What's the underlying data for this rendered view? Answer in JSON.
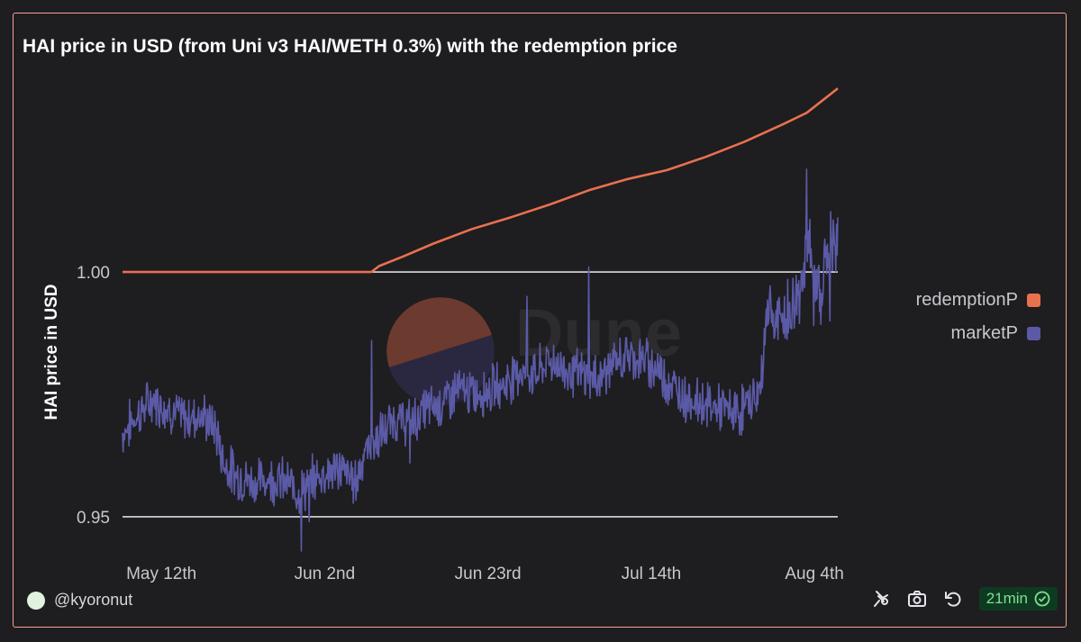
{
  "title": "HAI price in USD (from Uni v3 HAI/WETH 0.3%) with the redemption price",
  "footer": {
    "user": "@kyoronut",
    "refresh_age": "21min"
  },
  "watermark": "Dune",
  "colors": {
    "redemptionP": "#e8714e",
    "marketP": "#5b5aa6",
    "grid": "#ffffff",
    "text": "#c9c6ce"
  },
  "chart_data": {
    "type": "line",
    "ylabel": "HAI price in USD",
    "xlabel": "",
    "y_ticks": [
      1.0,
      0.95
    ],
    "y_tick_labels": [
      "1.00",
      "0.95"
    ],
    "ylim": [
      0.943,
      1.039
    ],
    "x_range": [
      "May 7th",
      "Aug 8th"
    ],
    "x_ticks": [
      "May 12th",
      "Jun 2nd",
      "Jun 23rd",
      "Jul 14th",
      "Aug 4th"
    ],
    "x_tick_days": [
      5,
      26,
      47,
      68,
      89
    ],
    "x_day_range": [
      0,
      92
    ],
    "legend": [
      "redemptionP",
      "marketP"
    ],
    "legend_position": "right",
    "series": [
      {
        "name": "redemptionP",
        "points": [
          [
            0,
            1.0
          ],
          [
            32,
            1.0
          ],
          [
            33,
            1.0012
          ],
          [
            36,
            1.0031
          ],
          [
            40,
            1.0058
          ],
          [
            45,
            1.0088
          ],
          [
            50,
            1.0112
          ],
          [
            55,
            1.0138
          ],
          [
            60,
            1.0167
          ],
          [
            65,
            1.019
          ],
          [
            70,
            1.0208
          ],
          [
            75,
            1.0235
          ],
          [
            80,
            1.0266
          ],
          [
            85,
            1.0302
          ],
          [
            88,
            1.0325
          ],
          [
            92,
            1.0375
          ]
        ]
      },
      {
        "name": "marketP",
        "points": [
          [
            0,
            0.967
          ],
          [
            2,
            0.971
          ],
          [
            4,
            0.974
          ],
          [
            6,
            0.972
          ],
          [
            8,
            0.97
          ],
          [
            10,
            0.971
          ],
          [
            12,
            0.968
          ],
          [
            13,
            0.961
          ],
          [
            15,
            0.958
          ],
          [
            17,
            0.957
          ],
          [
            19,
            0.958
          ],
          [
            21,
            0.957
          ],
          [
            23,
            0.955
          ],
          [
            24,
            0.957
          ],
          [
            26,
            0.959
          ],
          [
            28,
            0.96
          ],
          [
            30,
            0.957
          ],
          [
            31,
            0.963
          ],
          [
            33,
            0.966
          ],
          [
            35,
            0.97
          ],
          [
            37,
            0.969
          ],
          [
            39,
            0.972
          ],
          [
            41,
            0.973
          ],
          [
            43,
            0.976
          ],
          [
            45,
            0.975
          ],
          [
            47,
            0.976
          ],
          [
            49,
            0.977
          ],
          [
            51,
            0.98
          ],
          [
            53,
            0.979
          ],
          [
            55,
            0.982
          ],
          [
            57,
            0.98
          ],
          [
            59,
            0.979
          ],
          [
            61,
            0.978
          ],
          [
            63,
            0.981
          ],
          [
            65,
            0.983
          ],
          [
            67,
            0.982
          ],
          [
            69,
            0.98
          ],
          [
            71,
            0.976
          ],
          [
            73,
            0.974
          ],
          [
            75,
            0.973
          ],
          [
            77,
            0.972
          ],
          [
            79,
            0.971
          ],
          [
            81,
            0.974
          ],
          [
            82,
            0.975
          ],
          [
            83,
            0.994
          ],
          [
            84,
            0.989
          ],
          [
            85,
            0.99
          ],
          [
            86,
            0.992
          ],
          [
            87,
            0.995
          ],
          [
            88,
            1.007
          ],
          [
            89,
            0.996
          ],
          [
            90,
            0.998
          ],
          [
            91,
            1.006
          ],
          [
            92,
            1.004
          ]
        ],
        "spikes": [
          [
            23,
            0.943
          ],
          [
            24,
            0.949
          ],
          [
            32,
            0.986
          ],
          [
            37,
            0.961
          ],
          [
            52,
            0.995
          ],
          [
            60,
            1.001
          ],
          [
            88,
            1.021
          ],
          [
            91,
            0.99
          ]
        ]
      }
    ]
  }
}
